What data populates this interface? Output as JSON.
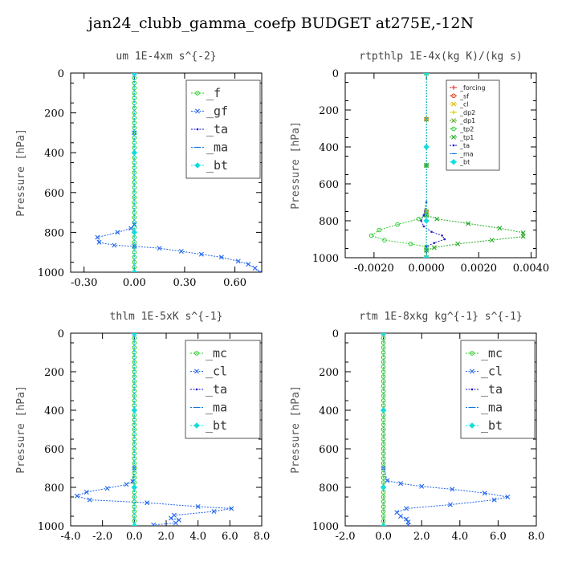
{
  "title": "jan24_clubb_gamma_coefp  BUDGET at275E,-12N",
  "chart_data": [
    {
      "type": "line",
      "title": "um   1E-4xm  s^{-2}",
      "ylabel": "Pressure [hPa]",
      "ylim": [
        1000,
        0
      ],
      "xlim": [
        -0.38,
        0.76
      ],
      "xticks": [
        -0.3,
        0.0,
        0.3,
        0.6
      ],
      "xticklabels": [
        "-0.30",
        "0.00",
        "0.30",
        "0.60"
      ],
      "yticks": [
        0,
        200,
        400,
        600,
        800,
        1000
      ],
      "legend_style": "big",
      "series": [
        {
          "name": "_f",
          "color": "#22cc22",
          "marker": "o",
          "x": [
            0.0,
            0.0,
            0.0,
            0.0,
            0.0,
            0.0,
            0.0,
            0.0,
            0.0,
            0.0,
            0.0,
            0.0,
            0.0,
            0.0,
            0.0,
            0.0,
            0.0,
            0.0,
            0.0,
            0.0,
            0.0,
            0.0,
            0.0,
            0.0,
            0.0,
            0.0,
            0.0,
            0.0,
            0.0,
            0.0,
            0.0,
            0.0,
            0.0,
            0.0,
            0.0,
            0.0,
            0.0,
            0.0,
            0.0,
            0.0,
            0.0
          ],
          "y": [
            0,
            25,
            50,
            75,
            100,
            125,
            150,
            175,
            200,
            225,
            250,
            275,
            300,
            325,
            350,
            375,
            400,
            425,
            450,
            475,
            500,
            525,
            550,
            575,
            600,
            625,
            650,
            675,
            700,
            725,
            750,
            775,
            800,
            825,
            850,
            875,
            900,
            925,
            950,
            975,
            1000
          ]
        },
        {
          "name": "_gf",
          "color": "#2266ee",
          "marker": "x",
          "x": [
            0.0,
            0.0,
            0.0,
            -0.02,
            -0.1,
            -0.22,
            -0.21,
            -0.12,
            0.0,
            0.15,
            0.28,
            0.4,
            0.52,
            0.62,
            0.68,
            0.72,
            0.75
          ],
          "y": [
            0,
            300,
            760,
            780,
            800,
            825,
            850,
            865,
            870,
            880,
            895,
            910,
            925,
            945,
            960,
            980,
            1000
          ]
        },
        {
          "name": "_ta",
          "color": "#1111cc",
          "marker": ".",
          "x": [
            0.0,
            0.0,
            0.0,
            0.0
          ],
          "y": [
            0,
            400,
            800,
            1000
          ]
        },
        {
          "name": "_ma",
          "color": "#1177dd",
          "marker": "-",
          "x": [
            0.0,
            0.0,
            0.0,
            0.0
          ],
          "y": [
            0,
            400,
            800,
            1000
          ]
        },
        {
          "name": "_bt",
          "color": "#11dddd",
          "marker": "d",
          "x": [
            0.0,
            0.0,
            0.0,
            0.0
          ],
          "y": [
            0,
            400,
            800,
            1000
          ]
        }
      ]
    },
    {
      "type": "line",
      "title": "rtpthlp   1E-4x(kg K)/(kg s)",
      "ylabel": "Pressure [hPa]",
      "ylim": [
        1000,
        0
      ],
      "xlim": [
        -0.0031,
        0.0042
      ],
      "xticks": [
        -0.002,
        0.0,
        0.002,
        0.004
      ],
      "xticklabels": [
        "-0.0020",
        "0.0000",
        "0.0020",
        "0.0040"
      ],
      "yticks": [
        0,
        200,
        400,
        600,
        800,
        1000
      ],
      "legend_style": "small",
      "series": [
        {
          "name": "_forcing",
          "color": "#dd2222",
          "marker": "+",
          "x": [
            0.0,
            0.0,
            0.0,
            0.0,
            0.0
          ],
          "y": [
            0,
            250,
            500,
            750,
            1000
          ]
        },
        {
          "name": "_sf",
          "color": "#dd3311",
          "marker": "o",
          "x": [
            0.0,
            0.0,
            0.0,
            0.0,
            0.0
          ],
          "y": [
            0,
            250,
            500,
            750,
            1000
          ]
        },
        {
          "name": "_cl",
          "color": "#ddbb00",
          "marker": "x",
          "x": [
            0.0,
            0.0,
            0.0,
            0.0,
            0.0
          ],
          "y": [
            0,
            250,
            500,
            750,
            1000
          ]
        },
        {
          "name": "_dp2",
          "color": "#ddcc00",
          "marker": "+",
          "x": [
            0.0,
            0.0,
            0.0,
            0.0,
            0.0
          ],
          "y": [
            0,
            250,
            500,
            750,
            1000
          ]
        },
        {
          "name": "_dp1",
          "color": "#66aa33",
          "marker": "x",
          "x": [
            0.0,
            0.0,
            0.0,
            0.0,
            0.0
          ],
          "y": [
            0,
            250,
            500,
            750,
            1000
          ]
        },
        {
          "name": "_tp2",
          "color": "#33cc33",
          "marker": "o",
          "x": [
            0.0,
            0.0,
            0.0,
            -0.0003,
            -0.0011,
            -0.0018,
            -0.0021,
            -0.0016,
            -0.0006,
            0.0,
            0.0,
            0.0
          ],
          "y": [
            0,
            500,
            770,
            790,
            820,
            850,
            880,
            905,
            925,
            940,
            960,
            1000
          ]
        },
        {
          "name": "_tp1",
          "color": "#22aa22",
          "marker": "x",
          "x": [
            0.0,
            0.0,
            0.0,
            0.0004,
            0.0016,
            0.0028,
            0.0037,
            0.0037,
            0.0025,
            0.0012,
            0.0003,
            0.0,
            0.0
          ],
          "y": [
            0,
            500,
            770,
            790,
            815,
            840,
            865,
            885,
            905,
            925,
            945,
            960,
            1000
          ]
        },
        {
          "name": "_ta",
          "color": "#2222cc",
          "marker": ".",
          "x": [
            0.0,
            0.0,
            -0.0001,
            -0.0002,
            -0.0001,
            0.0002,
            0.0006,
            0.0007,
            0.0003,
            0.0,
            0.0
          ],
          "y": [
            0,
            700,
            770,
            800,
            830,
            860,
            880,
            900,
            920,
            940,
            1000
          ]
        },
        {
          "name": "_ma",
          "color": "#1177dd",
          "marker": "-",
          "x": [
            0.0,
            0.0,
            0.0,
            0.0
          ],
          "y": [
            0,
            400,
            800,
            1000
          ]
        },
        {
          "name": "_bt",
          "color": "#11dddd",
          "marker": "d",
          "x": [
            0.0,
            0.0,
            0.0,
            0.0
          ],
          "y": [
            0,
            400,
            800,
            1000
          ]
        }
      ]
    },
    {
      "type": "line",
      "title": "thlm   1E-5xK  s^{-1}",
      "ylabel": "Pressure [hPa]",
      "ylim": [
        1000,
        0
      ],
      "xlim": [
        -4.0,
        8.0
      ],
      "xticks": [
        -4.0,
        -2.0,
        0.0,
        2.0,
        4.0,
        6.0,
        8.0
      ],
      "xticklabels": [
        "-4.0",
        "-2.0",
        "0.0",
        "2.0",
        "4.0",
        "6.0",
        "8.0"
      ],
      "yticks": [
        0,
        200,
        400,
        600,
        800,
        1000
      ],
      "legend_style": "big",
      "series": [
        {
          "name": "_mc",
          "color": "#22cc22",
          "marker": "o",
          "x": [
            0.0,
            0.0,
            0.0,
            0.0,
            0.0,
            0.0,
            0.0,
            0.0,
            0.0,
            0.0,
            0.0,
            0.0,
            0.0,
            0.0,
            0.0,
            0.0,
            0.0,
            0.0,
            0.0,
            0.0,
            0.0,
            0.0,
            0.0,
            0.0,
            0.0,
            0.0,
            0.0,
            0.0,
            0.0,
            0.0,
            0.0,
            0.0,
            0.0,
            0.0,
            0.0,
            0.0,
            0.0,
            0.0,
            0.0,
            0.0,
            0.0
          ],
          "y": [
            0,
            25,
            50,
            75,
            100,
            125,
            150,
            175,
            200,
            225,
            250,
            275,
            300,
            325,
            350,
            375,
            400,
            425,
            450,
            475,
            500,
            525,
            550,
            575,
            600,
            625,
            650,
            675,
            700,
            725,
            750,
            775,
            800,
            825,
            850,
            875,
            900,
            925,
            950,
            975,
            1000
          ]
        },
        {
          "name": "_cl",
          "color": "#2266ee",
          "marker": "x",
          "x": [
            0.0,
            0.0,
            -0.1,
            -0.5,
            -1.7,
            -3.0,
            -3.6,
            -2.8,
            0.8,
            4.0,
            6.1,
            5.0,
            2.5,
            2.3,
            2.8,
            2.6,
            1.2
          ],
          "y": [
            0,
            700,
            770,
            785,
            805,
            825,
            845,
            865,
            880,
            900,
            910,
            925,
            945,
            960,
            970,
            985,
            995
          ]
        },
        {
          "name": "_ta",
          "color": "#1111cc",
          "marker": ".",
          "x": [
            0.0,
            0.0,
            0.0,
            0.0
          ],
          "y": [
            0,
            400,
            800,
            1000
          ]
        },
        {
          "name": "_ma",
          "color": "#1177dd",
          "marker": "-",
          "x": [
            0.0,
            0.0,
            0.0,
            0.0
          ],
          "y": [
            0,
            400,
            800,
            1000
          ]
        },
        {
          "name": "_bt",
          "color": "#11dddd",
          "marker": "d",
          "x": [
            0.0,
            0.0,
            0.0,
            0.0
          ],
          "y": [
            0,
            400,
            800,
            1000
          ]
        }
      ]
    },
    {
      "type": "line",
      "title": "rtm   1E-8xkg kg^{-1} s^{-1}",
      "ylabel": "Pressure [hPa]",
      "ylim": [
        1000,
        0
      ],
      "xlim": [
        -2.0,
        8.0
      ],
      "xticks": [
        -2.0,
        0.0,
        2.0,
        4.0,
        6.0,
        8.0
      ],
      "xticklabels": [
        "-2.0",
        "0.0",
        "2.0",
        "4.0",
        "6.0",
        "8.0"
      ],
      "yticks": [
        0,
        200,
        400,
        600,
        800,
        1000
      ],
      "legend_style": "big",
      "series": [
        {
          "name": "_mc",
          "color": "#22cc22",
          "marker": "o",
          "x": [
            0.0,
            0.0,
            0.0,
            0.0,
            0.0,
            0.0,
            0.0,
            0.0,
            0.0,
            0.0,
            0.0,
            0.0,
            0.0,
            0.0,
            0.0,
            0.0,
            0.0,
            0.0,
            0.0,
            0.0,
            0.0,
            0.0,
            0.0,
            0.0,
            0.0,
            0.0,
            0.0,
            0.0,
            0.0,
            0.0,
            0.0,
            0.0,
            0.0,
            0.0,
            0.0,
            0.0,
            0.0,
            0.0,
            0.0,
            0.0,
            0.0
          ],
          "y": [
            0,
            25,
            50,
            75,
            100,
            125,
            150,
            175,
            200,
            225,
            250,
            275,
            300,
            325,
            350,
            375,
            400,
            425,
            450,
            475,
            500,
            525,
            550,
            575,
            600,
            625,
            650,
            675,
            700,
            725,
            750,
            775,
            800,
            825,
            850,
            875,
            900,
            925,
            950,
            975,
            1000
          ]
        },
        {
          "name": "_cl",
          "color": "#2266ee",
          "marker": "x",
          "x": [
            0.0,
            0.0,
            0.2,
            0.9,
            2.0,
            3.6,
            5.3,
            6.5,
            5.8,
            3.5,
            1.2,
            0.7,
            0.9,
            1.2,
            1.3,
            1.3
          ],
          "y": [
            0,
            700,
            765,
            780,
            795,
            810,
            830,
            850,
            865,
            890,
            910,
            930,
            950,
            965,
            980,
            995
          ]
        },
        {
          "name": "_ta",
          "color": "#1111cc",
          "marker": ".",
          "x": [
            0.0,
            0.0,
            0.0,
            0.0
          ],
          "y": [
            0,
            400,
            800,
            1000
          ]
        },
        {
          "name": "_ma",
          "color": "#1177dd",
          "marker": "-",
          "x": [
            0.0,
            0.0,
            0.0,
            0.0
          ],
          "y": [
            0,
            400,
            800,
            1000
          ]
        },
        {
          "name": "_bt",
          "color": "#11dddd",
          "marker": "d",
          "x": [
            0.0,
            0.0,
            0.0,
            0.0
          ],
          "y": [
            0,
            400,
            800,
            1000
          ]
        }
      ]
    }
  ]
}
